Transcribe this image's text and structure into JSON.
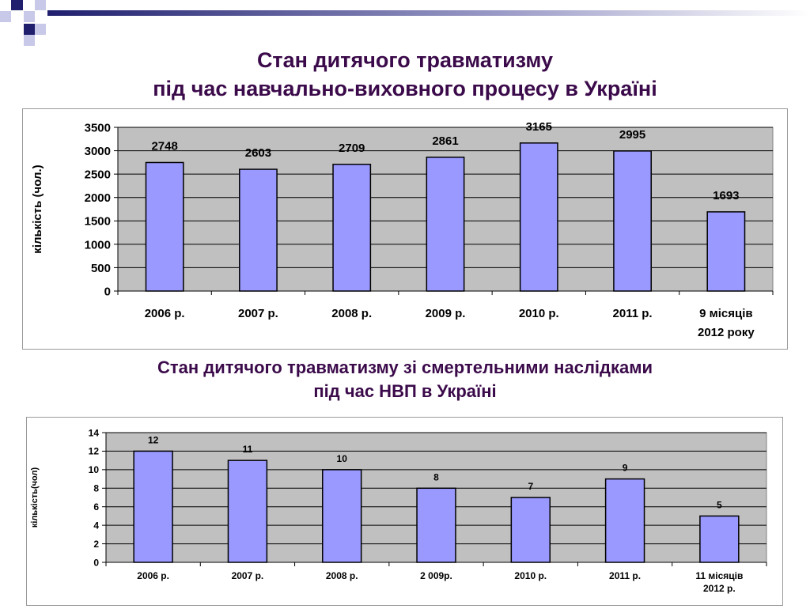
{
  "slide": {
    "title1_lines": [
      "Стан дитячого травматизму",
      "під час навчально-виховного процесу  в Україні"
    ],
    "title2_lines": [
      "Стан дитячого травматизму зі смертельними наслідками",
      "під час НВП в Україні"
    ],
    "colors": {
      "title": "#3b0a4a",
      "plot_bg": "#c0c0c0",
      "bar": "#9999ff",
      "bar_stroke": "#000000",
      "decor_dark": "#1f1f6e",
      "decor_light": "#c8c8e8"
    }
  },
  "chart_data": [
    {
      "type": "bar",
      "categories": [
        [
          "2006 р."
        ],
        [
          "2007 р."
        ],
        [
          "2008 р."
        ],
        [
          "2009 р."
        ],
        [
          "2010 р."
        ],
        [
          "2011 р."
        ],
        [
          "9 місяців",
          "2012 року"
        ]
      ],
      "values": [
        2748,
        2603,
        2709,
        2861,
        3165,
        2995,
        1693
      ],
      "ylabel": "кількість (чол.)",
      "ylim": [
        0,
        3500
      ],
      "yticks": [
        0,
        500,
        1000,
        1500,
        2000,
        2500,
        3000,
        3500
      ],
      "grid": true,
      "data_labels": true
    },
    {
      "type": "bar",
      "categories": [
        [
          "2006 р."
        ],
        [
          "2007 р."
        ],
        [
          "2008 р."
        ],
        [
          "2 009р."
        ],
        [
          "2010 р."
        ],
        [
          "2011 р."
        ],
        [
          "11 місяців",
          "2012 р."
        ]
      ],
      "values": [
        12,
        11,
        10,
        8,
        7,
        9,
        5
      ],
      "ylabel": "кількість(чол)",
      "ylim": [
        0,
        14
      ],
      "yticks": [
        0,
        2,
        4,
        6,
        8,
        10,
        12,
        14
      ],
      "grid": true,
      "data_labels": true
    }
  ]
}
